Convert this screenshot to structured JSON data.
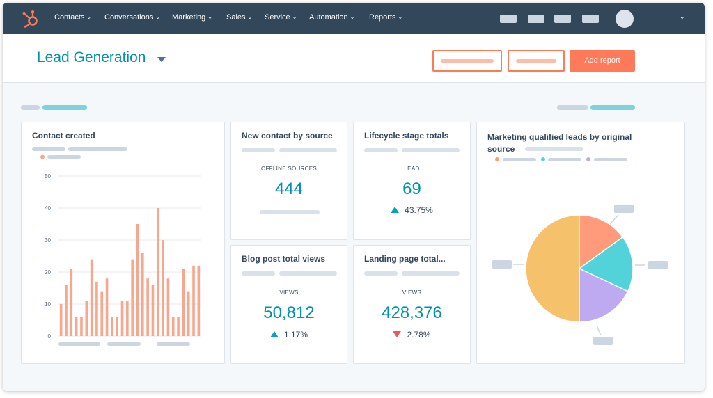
{
  "nav": {
    "items": [
      {
        "label": "Contacts"
      },
      {
        "label": "Conversations"
      },
      {
        "label": "Marketing"
      },
      {
        "label": "Sales"
      },
      {
        "label": "Service"
      },
      {
        "label": "Automation"
      },
      {
        "label": "Reports"
      }
    ],
    "chevron": "⌄"
  },
  "header": {
    "title": "Lead Generation",
    "add_report_label": "Add report"
  },
  "cards": {
    "contact_created": {
      "title": "Contact created"
    },
    "new_contact_by_source": {
      "title": "New contact by source",
      "metric_label": "OFFLINE SOURCES",
      "value": "444"
    },
    "lifecycle_stage_totals": {
      "title": "Lifecycle stage totals",
      "metric_label": "LEAD",
      "value": "69",
      "delta": "43.75%",
      "delta_direction": "up"
    },
    "blog_post_total_views": {
      "title": "Blog post total views",
      "metric_label": "VIEWS",
      "value": "50,812",
      "delta": "1.17%",
      "delta_direction": "up"
    },
    "landing_page_total": {
      "title": "Landing page total...",
      "metric_label": "VIEWS",
      "value": "428,376",
      "delta": "2.78%",
      "delta_direction": "down"
    },
    "mql_by_source": {
      "title_line1": "Marketing qualified leads by original",
      "title_line2": "source"
    }
  },
  "chart_data": [
    {
      "type": "bar",
      "title": "Contact created",
      "ylim": [
        0,
        50
      ],
      "yticks": [
        "0",
        "10",
        "20",
        "30",
        "40",
        "50"
      ],
      "grid": true,
      "color": "#f8a68e",
      "values": [
        10,
        16,
        21,
        6,
        6,
        11,
        24,
        17,
        14,
        18,
        6,
        6,
        11,
        11,
        24,
        35,
        26,
        18,
        16,
        40,
        30,
        18,
        6,
        6,
        21,
        14,
        22,
        22
      ]
    },
    {
      "type": "pie",
      "title": "Marketing qualified leads by original source",
      "values": [
        50,
        15,
        17,
        18
      ],
      "colors": [
        "#f5c26b",
        "#ff9b7b",
        "#51d3d9",
        "#beaaf0"
      ]
    }
  ],
  "colors": {
    "nav_bg": "#33475b",
    "accent": "#ff7a59",
    "teal": "#0091ae",
    "up": "#00a4bd",
    "down": "#f2545b"
  }
}
